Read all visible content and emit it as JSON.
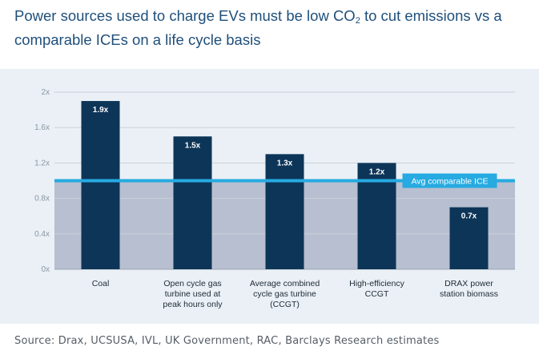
{
  "title": {
    "line1_prefix": "Power sources used to charge EVs must be low CO",
    "line1_sub": "2",
    "line1_suffix": " to cut emissions vs a",
    "line2": "comparable ICEs on a life cycle basis"
  },
  "source": "Source: Drax, UCSUSA, IVL, UK Government, RAC, Barclays Research estimates",
  "colors": {
    "bar": "#0d3558",
    "avg_line": "#26aae1",
    "below_band": "#b7bfd0",
    "panel_bg": "#eaf0f5"
  },
  "chart_data": {
    "type": "bar",
    "categories": [
      [
        "Coal"
      ],
      [
        "Open cycle gas",
        "turbine used at",
        "peak hours only"
      ],
      [
        "Average combined",
        "cycle gas turbine",
        "(CCGT)"
      ],
      [
        "High-efficiency",
        "CCGT"
      ],
      [
        "DRAX power",
        "station biomass"
      ]
    ],
    "values": [
      1.9,
      1.5,
      1.3,
      1.2,
      0.7
    ],
    "value_labels": [
      "1.9x",
      "1.5x",
      "1.3x",
      "1.2x",
      "0.7x"
    ],
    "yticks": [
      0,
      0.4,
      0.8,
      1.2,
      1.6,
      2
    ],
    "ytick_labels": [
      "0x",
      "0.4x",
      "0.8x",
      "1.2x",
      "1.6x",
      "2x"
    ],
    "ylim": [
      0,
      2
    ],
    "reference_line": {
      "value": 1.0,
      "label": "Avg comparable ICE"
    },
    "grid": true,
    "legend": false
  }
}
